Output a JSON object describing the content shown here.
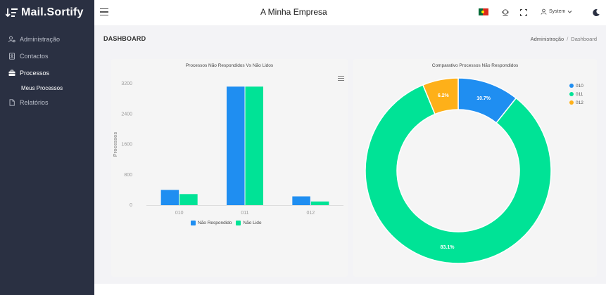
{
  "brand": {
    "name": "Mail.Sortify"
  },
  "sidebar": {
    "items": [
      {
        "label": "Administração",
        "icon": "users-cog-icon"
      },
      {
        "label": "Contactos",
        "icon": "address-book-icon"
      },
      {
        "label": "Processos",
        "icon": "briefcase-icon",
        "active": true
      },
      {
        "label": "Relatórios",
        "icon": "file-icon"
      }
    ],
    "sub_items": [
      {
        "label": "Meus Processos"
      }
    ]
  },
  "topbar": {
    "company": "A Minha Empresa",
    "user": "System",
    "icons": [
      "menu-icon",
      "portugal-flag-icon",
      "support-icon",
      "fullscreen-icon",
      "user-icon",
      "dark-mode-icon"
    ]
  },
  "header": {
    "title": "DASHBOARD",
    "breadcrumb": [
      "Administração",
      "Dashboard"
    ]
  },
  "colors": {
    "blue": "#1f8ef1",
    "green": "#00e396",
    "orange": "#feb019",
    "sidebar": "#2a3042"
  },
  "chart_data": [
    {
      "type": "bar",
      "title": "Processos Não Respondidos Vs Não Lidos",
      "ylabel": "Processos",
      "xlabel": "",
      "categories": [
        "010",
        "011",
        "012"
      ],
      "ylim": [
        0,
        3200
      ],
      "yticks": [
        "3200",
        "2400",
        "1600",
        "800",
        "0"
      ],
      "grid": false,
      "legend": "bottom",
      "series": [
        {
          "name": "Não Respondido",
          "color": "#1f8ef1",
          "values": [
            400,
            3120,
            230
          ]
        },
        {
          "name": "Não Lido",
          "color": "#00e396",
          "values": [
            290,
            3120,
            95
          ]
        }
      ]
    },
    {
      "type": "pie",
      "variant": "donut",
      "title": "Comparativo Processos Não Respondidos",
      "legend": "top-right",
      "labels": [
        "010",
        "011",
        "012"
      ],
      "values": [
        10.7,
        83.1,
        6.2
      ],
      "value_labels": [
        "10.7%",
        "83.1%",
        "6.2%"
      ],
      "colors": [
        "#1f8ef1",
        "#00e396",
        "#feb019"
      ]
    }
  ]
}
